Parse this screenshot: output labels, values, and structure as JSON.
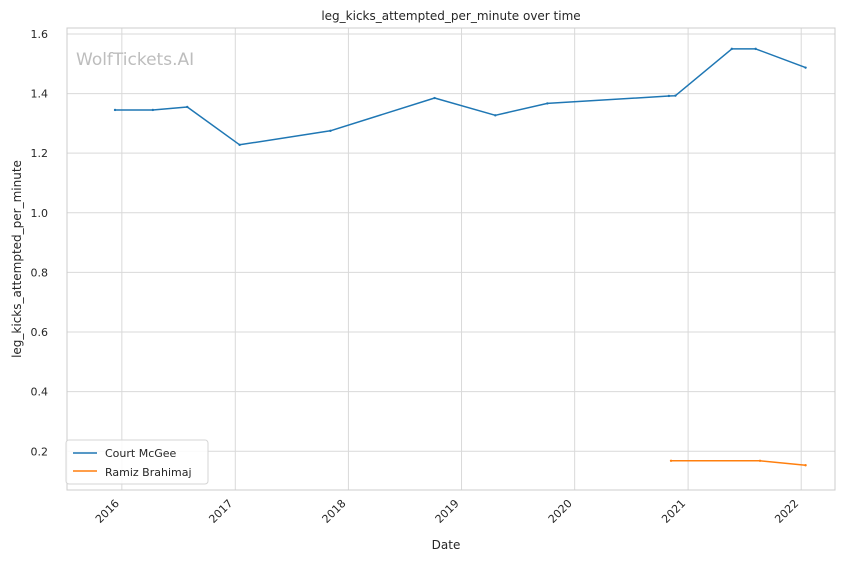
{
  "watermark": "WolfTickets.AI",
  "chart_data": {
    "type": "line",
    "title": "leg_kicks_attempted_per_minute over time",
    "xlabel": "Date",
    "ylabel": "leg_kicks_attempted_per_minute",
    "x_ticks": [
      "2016",
      "2017",
      "2018",
      "2019",
      "2020",
      "2021",
      "2022"
    ],
    "y_ticks": [
      "0.2",
      "0.4",
      "0.6",
      "0.8",
      "1.0",
      "1.2",
      "1.4",
      "1.6"
    ],
    "ylim": [
      0.07,
      1.62
    ],
    "xlim": [
      "2015-07-08",
      "2022-04-20"
    ],
    "grid": true,
    "legend_position": "lower-left",
    "series": [
      {
        "name": "Court McGee",
        "color": "#1f77b4",
        "points": [
          [
            "2015-12-10",
            1.345
          ],
          [
            "2016-04-10",
            1.345
          ],
          [
            "2016-07-30",
            1.355
          ],
          [
            "2017-01-15",
            1.228
          ],
          [
            "2017-11-04",
            1.275
          ],
          [
            "2018-10-06",
            1.385
          ],
          [
            "2019-04-20",
            1.327
          ],
          [
            "2019-10-05",
            1.367
          ],
          [
            "2020-10-31",
            1.392
          ],
          [
            "2020-11-21",
            1.393
          ],
          [
            "2021-05-22",
            1.55
          ],
          [
            "2021-08-07",
            1.55
          ],
          [
            "2022-01-15",
            1.487
          ]
        ]
      },
      {
        "name": "Ramiz Brahimaj",
        "color": "#ff7f0e",
        "points": [
          [
            "2020-11-07",
            0.168
          ],
          [
            "2021-08-21",
            0.168
          ],
          [
            "2022-01-15",
            0.153
          ]
        ]
      }
    ]
  }
}
